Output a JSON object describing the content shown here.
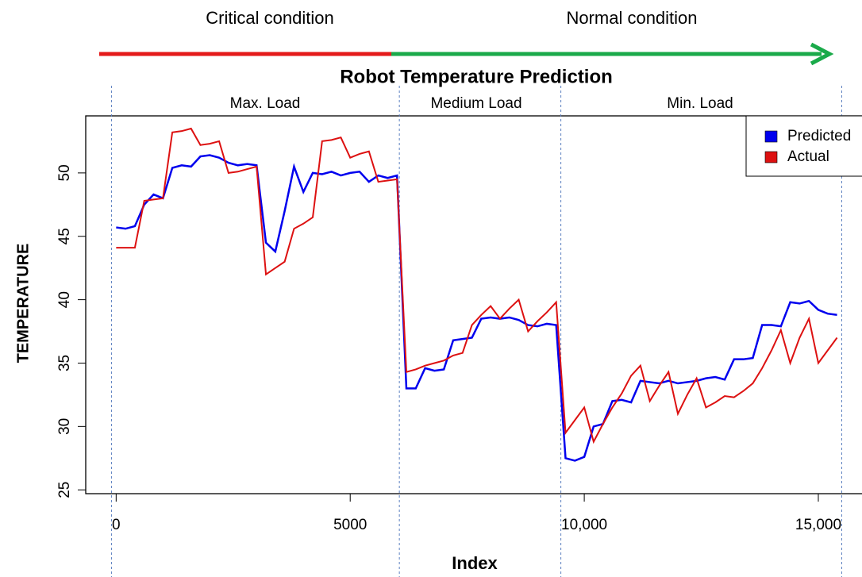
{
  "chart_data": {
    "type": "line",
    "title": "Robot Temperature Prediction",
    "x_label": "Index",
    "y_label": "TEMPERATURE",
    "annotations": {
      "critical": "Critical condition",
      "normal": "Normal condition",
      "max_load": "Max. Load",
      "medium_load": "Medium Load",
      "min_load": "Min. Load"
    },
    "dividers": [
      -100,
      6050,
      9500,
      15500
    ],
    "xlim": [
      -650,
      15950
    ],
    "ylim": [
      24.7,
      54.5
    ],
    "xticks": [
      0,
      5000,
      {
        "value": 10000,
        "label": "10,000"
      },
      {
        "value": 15000,
        "label": "15,000"
      }
    ],
    "yticks": [
      25,
      30,
      35,
      40,
      45,
      50
    ],
    "legend": "top-right",
    "x": [
      0,
      200,
      400,
      600,
      800,
      1000,
      1200,
      1400,
      1600,
      1800,
      2000,
      2200,
      2400,
      2600,
      2800,
      3000,
      3200,
      3400,
      3600,
      3800,
      4000,
      4200,
      4400,
      4600,
      4800,
      5000,
      5200,
      5400,
      5600,
      5800,
      6000,
      6200,
      6400,
      6600,
      6800,
      7000,
      7200,
      7400,
      7600,
      7800,
      8000,
      8200,
      8400,
      8600,
      8800,
      9000,
      9200,
      9400,
      9600,
      9800,
      10000,
      10200,
      10400,
      10600,
      10800,
      11000,
      11200,
      11400,
      11600,
      11800,
      12000,
      12200,
      12400,
      12600,
      12800,
      13000,
      13200,
      13400,
      13600,
      13800,
      14000,
      14200,
      14400,
      14600,
      14800,
      15000,
      15200,
      15400
    ],
    "series": [
      {
        "name": "Predicted",
        "color": "#0000ee",
        "values": [
          45.7,
          45.6,
          45.8,
          47.5,
          48.3,
          48.0,
          50.4,
          50.6,
          50.5,
          51.3,
          51.4,
          51.2,
          50.8,
          50.6,
          50.7,
          50.6,
          44.5,
          43.8,
          47.0,
          50.5,
          48.5,
          50.0,
          49.9,
          50.1,
          49.8,
          50.0,
          50.1,
          49.3,
          49.8,
          49.6,
          49.8,
          33.0,
          33.0,
          34.6,
          34.4,
          34.5,
          36.8,
          36.9,
          37.0,
          38.5,
          38.6,
          38.5,
          38.6,
          38.4,
          38.0,
          37.9,
          38.1,
          38.0,
          27.5,
          27.3,
          27.6,
          30.0,
          30.2,
          32.0,
          32.1,
          31.9,
          33.6,
          33.5,
          33.4,
          33.6,
          33.4,
          33.5,
          33.6,
          33.8,
          33.9,
          33.7,
          35.3,
          35.3,
          35.4,
          38.0,
          38.0,
          37.9,
          39.8,
          39.7,
          39.9,
          39.2,
          38.9,
          38.8
        ]
      },
      {
        "name": "Actual",
        "color": "#dd1111",
        "values": [
          44.1,
          44.1,
          44.1,
          47.8,
          47.9,
          48.0,
          53.2,
          53.3,
          53.5,
          52.2,
          52.3,
          52.5,
          50.0,
          50.1,
          50.3,
          50.5,
          42.0,
          42.5,
          43.0,
          45.6,
          46.0,
          46.5,
          52.5,
          52.6,
          52.8,
          51.2,
          51.5,
          51.7,
          49.3,
          49.4,
          49.5,
          34.3,
          34.5,
          34.8,
          35.0,
          35.2,
          35.6,
          35.8,
          38.0,
          38.8,
          39.5,
          38.5,
          39.3,
          40.0,
          37.5,
          38.3,
          39.0,
          39.8,
          29.5,
          30.5,
          31.5,
          28.8,
          30.2,
          31.5,
          32.6,
          34.0,
          34.8,
          32.0,
          33.2,
          34.3,
          31.0,
          32.5,
          33.8,
          31.5,
          31.9,
          32.4,
          32.3,
          32.8,
          33.4,
          34.6,
          36.0,
          37.6,
          35.0,
          37.0,
          38.5,
          35.0,
          36.0,
          37.0
        ]
      }
    ]
  }
}
